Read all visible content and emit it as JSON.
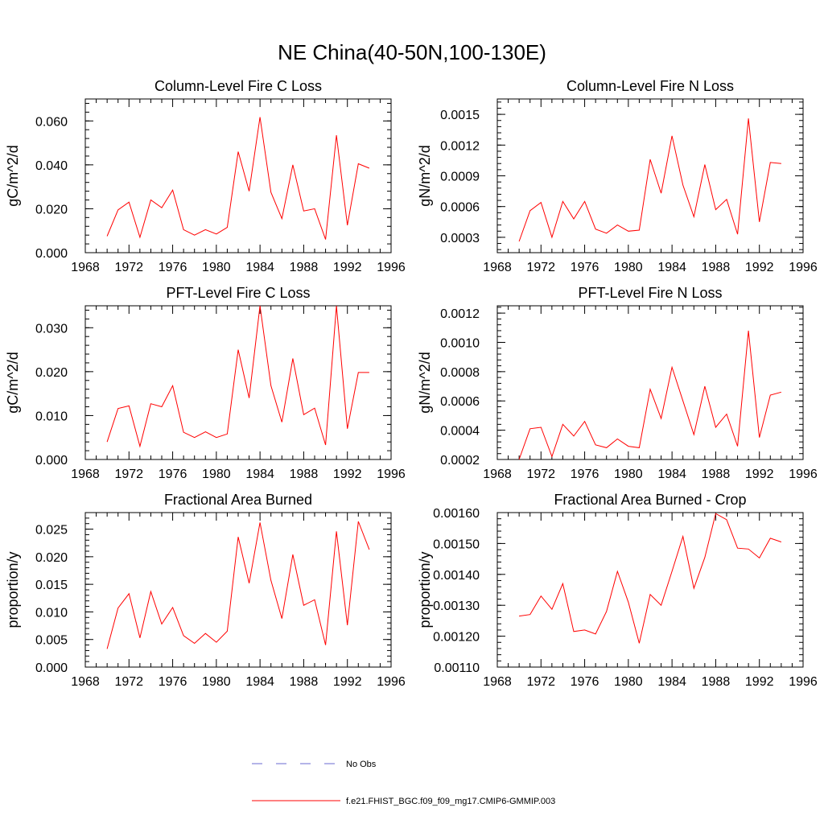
{
  "figure": {
    "title": "NE China(40-50N,100-130E)",
    "legend": [
      {
        "label": "No Obs",
        "style": "dashed",
        "color": "#6a6ad0"
      },
      {
        "label": "f.e21.FHIST_BGC.f09_f09_mg17.CMIP6-GMMIP.003",
        "style": "solid",
        "color": "#ff0000"
      }
    ]
  },
  "chart_data": [
    {
      "type": "line",
      "title": "Column-Level Fire C Loss",
      "ylabel": "gC/m^2/d",
      "xlabel": "",
      "xlim": [
        1968,
        1996
      ],
      "ylim": [
        0,
        0.07
      ],
      "xticks": [
        1968,
        1972,
        1976,
        1980,
        1984,
        1988,
        1992,
        1996
      ],
      "xtick_labels": [
        "1968",
        "1972",
        "1976",
        "1980",
        "1984",
        "1988",
        "1992",
        "1996"
      ],
      "yticks": [
        0,
        0.02,
        0.04,
        0.06
      ],
      "ytick_labels": [
        "0.000",
        "0.020",
        "0.040",
        "0.060"
      ],
      "x": [
        1970,
        1971,
        1972,
        1973,
        1974,
        1975,
        1976,
        1977,
        1978,
        1979,
        1980,
        1981,
        1982,
        1983,
        1984,
        1985,
        1986,
        1987,
        1988,
        1989,
        1990,
        1991,
        1992,
        1993,
        1994
      ],
      "series": [
        {
          "name": "f.e21.FHIST_BGC.f09_f09_mg17.CMIP6-GMMIP.003",
          "color": "#ff0000",
          "values": [
            0.0075,
            0.0195,
            0.023,
            0.007,
            0.024,
            0.0205,
            0.0285,
            0.0105,
            0.008,
            0.0105,
            0.0085,
            0.0115,
            0.046,
            0.028,
            0.0617,
            0.0275,
            0.0155,
            0.04,
            0.019,
            0.02,
            0.006,
            0.0535,
            0.0125,
            0.0405,
            0.0385
          ]
        }
      ]
    },
    {
      "type": "line",
      "title": "Column-Level Fire N Loss",
      "ylabel": "gN/m^2/d",
      "xlabel": "",
      "xlim": [
        1968,
        1996
      ],
      "ylim": [
        0.00015,
        0.00165
      ],
      "xticks": [
        1968,
        1972,
        1976,
        1980,
        1984,
        1988,
        1992,
        1996
      ],
      "xtick_labels": [
        "1968",
        "1972",
        "1976",
        "1980",
        "1984",
        "1988",
        "1992",
        "1996"
      ],
      "yticks": [
        0.0003,
        0.0006,
        0.0009,
        0.0012,
        0.0015
      ],
      "ytick_labels": [
        "0.0003",
        "0.0006",
        "0.0009",
        "0.0012",
        "0.0015"
      ],
      "x": [
        1970,
        1971,
        1972,
        1973,
        1974,
        1975,
        1976,
        1977,
        1978,
        1979,
        1980,
        1981,
        1982,
        1983,
        1984,
        1985,
        1986,
        1987,
        1988,
        1989,
        1990,
        1991,
        1992,
        1993,
        1994
      ],
      "series": [
        {
          "name": "f.e21.FHIST_BGC.f09_f09_mg17.CMIP6-GMMIP.003",
          "color": "#ff0000",
          "values": [
            0.00026,
            0.00056,
            0.00064,
            0.0003,
            0.00065,
            0.00048,
            0.00065,
            0.00038,
            0.00034,
            0.00042,
            0.00036,
            0.00037,
            0.00106,
            0.00073,
            0.00129,
            0.00081,
            0.0005,
            0.00101,
            0.00057,
            0.00067,
            0.00033,
            0.00146,
            0.00045,
            0.00103,
            0.00102
          ]
        }
      ]
    },
    {
      "type": "line",
      "title": "PFT-Level Fire C Loss",
      "ylabel": "gC/m^2/d",
      "xlabel": "",
      "xlim": [
        1968,
        1996
      ],
      "ylim": [
        0,
        0.035
      ],
      "xticks": [
        1968,
        1972,
        1976,
        1980,
        1984,
        1988,
        1992,
        1996
      ],
      "xtick_labels": [
        "1968",
        "1972",
        "1976",
        "1980",
        "1984",
        "1988",
        "1992",
        "1996"
      ],
      "yticks": [
        0,
        0.01,
        0.02,
        0.03
      ],
      "ytick_labels": [
        "0.000",
        "0.010",
        "0.020",
        "0.030"
      ],
      "x": [
        1970,
        1971,
        1972,
        1973,
        1974,
        1975,
        1976,
        1977,
        1978,
        1979,
        1980,
        1981,
        1982,
        1983,
        1984,
        1985,
        1986,
        1987,
        1988,
        1989,
        1990,
        1991,
        1992,
        1993,
        1994
      ],
      "series": [
        {
          "name": "f.e21.FHIST_BGC.f09_f09_mg17.CMIP6-GMMIP.003",
          "color": "#ff0000",
          "values": [
            0.004,
            0.0116,
            0.0122,
            0.003,
            0.0127,
            0.012,
            0.0168,
            0.0062,
            0.005,
            0.0063,
            0.005,
            0.0058,
            0.025,
            0.014,
            0.035,
            0.0168,
            0.0085,
            0.023,
            0.0102,
            0.0117,
            0.0033,
            0.035,
            0.007,
            0.0198,
            0.0198
          ]
        }
      ]
    },
    {
      "type": "line",
      "title": "PFT-Level Fire N Loss",
      "ylabel": "gN/m^2/d",
      "xlabel": "",
      "xlim": [
        1968,
        1996
      ],
      "ylim": [
        0.0002,
        0.00125
      ],
      "xticks": [
        1968,
        1972,
        1976,
        1980,
        1984,
        1988,
        1992,
        1996
      ],
      "xtick_labels": [
        "1968",
        "1972",
        "1976",
        "1980",
        "1984",
        "1988",
        "1992",
        "1996"
      ],
      "yticks": [
        0.0002,
        0.0004,
        0.0006,
        0.0008,
        0.001,
        0.0012
      ],
      "ytick_labels": [
        "0.0002",
        "0.0004",
        "0.0006",
        "0.0008",
        "0.0010",
        "0.0012"
      ],
      "x": [
        1970,
        1971,
        1972,
        1973,
        1974,
        1975,
        1976,
        1977,
        1978,
        1979,
        1980,
        1981,
        1982,
        1983,
        1984,
        1985,
        1986,
        1987,
        1988,
        1989,
        1990,
        1991,
        1992,
        1993,
        1994
      ],
      "series": [
        {
          "name": "f.e21.FHIST_BGC.f09_f09_mg17.CMIP6-GMMIP.003",
          "color": "#ff0000",
          "values": [
            0.0002,
            0.00041,
            0.00042,
            0.00022,
            0.00044,
            0.00036,
            0.00046,
            0.0003,
            0.00028,
            0.00034,
            0.00029,
            0.00028,
            0.00068,
            0.00048,
            0.00083,
            0.0006,
            0.00037,
            0.0007,
            0.00042,
            0.00051,
            0.00029,
            0.00108,
            0.00035,
            0.00064,
            0.00066
          ]
        }
      ]
    },
    {
      "type": "line",
      "title": "Fractional Area Burned",
      "ylabel": "proportion/y",
      "xlabel": "",
      "xlim": [
        1968,
        1996
      ],
      "ylim": [
        0,
        0.028
      ],
      "xticks": [
        1968,
        1972,
        1976,
        1980,
        1984,
        1988,
        1992,
        1996
      ],
      "xtick_labels": [
        "1968",
        "1972",
        "1976",
        "1980",
        "1984",
        "1988",
        "1992",
        "1996"
      ],
      "yticks": [
        0,
        0.005,
        0.01,
        0.015,
        0.02,
        0.025
      ],
      "ytick_labels": [
        "0.000",
        "0.005",
        "0.010",
        "0.015",
        "0.020",
        "0.025"
      ],
      "x": [
        1970,
        1971,
        1972,
        1973,
        1974,
        1975,
        1976,
        1977,
        1978,
        1979,
        1980,
        1981,
        1982,
        1983,
        1984,
        1985,
        1986,
        1987,
        1988,
        1989,
        1990,
        1991,
        1992,
        1993,
        1994
      ],
      "series": [
        {
          "name": "f.e21.FHIST_BGC.f09_f09_mg17.CMIP6-GMMIP.003",
          "color": "#ff0000",
          "values": [
            0.0033,
            0.0107,
            0.0133,
            0.0053,
            0.0137,
            0.0078,
            0.0108,
            0.0057,
            0.0043,
            0.0061,
            0.0045,
            0.0065,
            0.0236,
            0.0152,
            0.0262,
            0.0157,
            0.0088,
            0.0204,
            0.0112,
            0.0122,
            0.004,
            0.0246,
            0.0076,
            0.0264,
            0.0213
          ]
        }
      ]
    },
    {
      "type": "line",
      "title": "Fractional Area Burned - Crop",
      "ylabel": "proportion/y",
      "xlabel": "",
      "xlim": [
        1968,
        1996
      ],
      "ylim": [
        0.0011,
        0.0016
      ],
      "xticks": [
        1968,
        1972,
        1976,
        1980,
        1984,
        1988,
        1992,
        1996
      ],
      "xtick_labels": [
        "1968",
        "1972",
        "1976",
        "1980",
        "1984",
        "1988",
        "1992",
        "1996"
      ],
      "yticks": [
        0.0011,
        0.0012,
        0.0013,
        0.0014,
        0.0015,
        0.0016
      ],
      "ytick_labels": [
        "0.00110",
        "0.00120",
        "0.00130",
        "0.00140",
        "0.00150",
        "0.00160"
      ],
      "x": [
        1970,
        1971,
        1972,
        1973,
        1974,
        1975,
        1976,
        1977,
        1978,
        1979,
        1980,
        1981,
        1982,
        1983,
        1984,
        1985,
        1986,
        1987,
        1988,
        1989,
        1990,
        1991,
        1992,
        1993,
        1994
      ],
      "series": [
        {
          "name": "f.e21.FHIST_BGC.f09_f09_mg17.CMIP6-GMMIP.003",
          "color": "#ff0000",
          "values": [
            0.001265,
            0.00127,
            0.00133,
            0.001287,
            0.00137,
            0.001215,
            0.00122,
            0.001207,
            0.00128,
            0.00141,
            0.00131,
            0.001177,
            0.001335,
            0.0013,
            0.00141,
            0.001523,
            0.001355,
            0.001455,
            0.001597,
            0.001577,
            0.001485,
            0.001482,
            0.001453,
            0.001517,
            0.001505
          ]
        }
      ]
    }
  ]
}
